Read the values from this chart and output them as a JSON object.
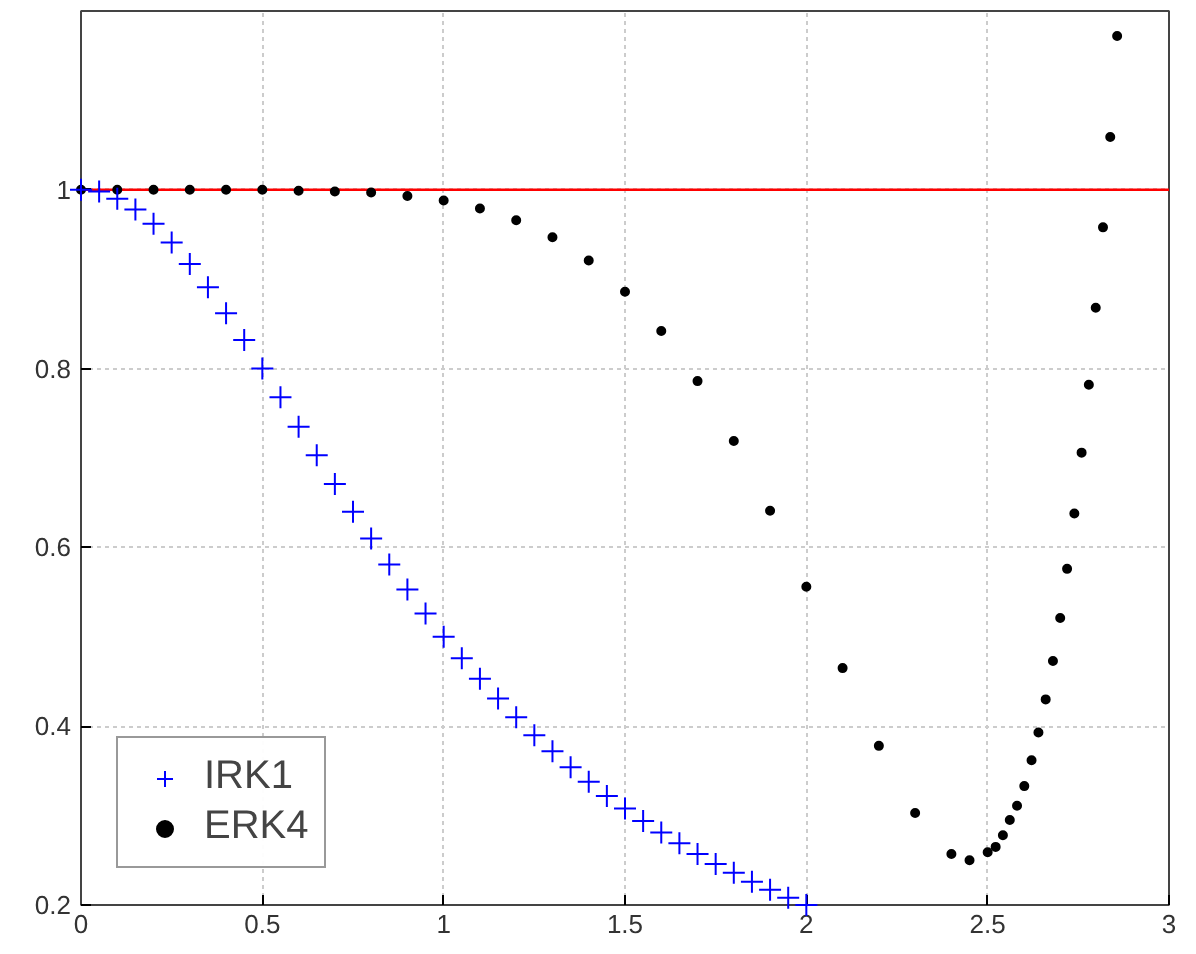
{
  "chart_data": {
    "type": "scatter",
    "xlim": [
      0,
      3
    ],
    "ylim": [
      0.2,
      1.2
    ],
    "xticks": [
      0,
      0.5,
      1,
      1.5,
      2,
      2.5,
      3
    ],
    "yticks": [
      0.2,
      0.4,
      0.6,
      0.8,
      1
    ],
    "grid": true,
    "legend": "bottom left",
    "ref_lines": [
      {
        "axis": "y",
        "value": 1,
        "color": "#ff0000"
      }
    ],
    "series": [
      {
        "name": "IRK1",
        "color": "#0000ff",
        "marker": "cross",
        "x": [
          0,
          0.05,
          0.1,
          0.15,
          0.2,
          0.25,
          0.3,
          0.35,
          0.4,
          0.45,
          0.5,
          0.55,
          0.6,
          0.65,
          0.7,
          0.75,
          0.8,
          0.85,
          0.9,
          0.95,
          1,
          1.05,
          1.1,
          1.15,
          1.2,
          1.25,
          1.3,
          1.35,
          1.4,
          1.45,
          1.5,
          1.55,
          1.6,
          1.65,
          1.7,
          1.75,
          1.8,
          1.85,
          1.9,
          1.95,
          2
        ],
        "values": [
          1,
          0.998,
          0.99,
          0.978,
          0.962,
          0.941,
          0.917,
          0.891,
          0.862,
          0.832,
          0.8,
          0.768,
          0.735,
          0.703,
          0.671,
          0.64,
          0.61,
          0.581,
          0.553,
          0.526,
          0.5,
          0.476,
          0.453,
          0.431,
          0.41,
          0.39,
          0.372,
          0.354,
          0.338,
          0.322,
          0.308,
          0.294,
          0.281,
          0.269,
          0.257,
          0.246,
          0.236,
          0.226,
          0.217,
          0.208,
          0.2
        ]
      },
      {
        "name": "ERK4",
        "color": "#000000",
        "marker": "circle",
        "x": [
          0,
          0.1,
          0.2,
          0.3,
          0.4,
          0.5,
          0.6,
          0.7,
          0.8,
          0.9,
          1,
          1.1,
          1.2,
          1.3,
          1.4,
          1.5,
          1.6,
          1.7,
          1.8,
          1.9,
          2,
          2.1,
          2.2,
          2.3,
          2.4,
          2.45,
          2.5,
          2.522,
          2.542,
          2.561,
          2.581,
          2.601,
          2.621,
          2.64,
          2.66,
          2.68,
          2.7,
          2.719,
          2.739,
          2.759,
          2.779,
          2.798,
          2.818,
          2.838,
          2.857
        ],
        "values": [
          1,
          1,
          1,
          1,
          1,
          1,
          0.999,
          0.998,
          0.997,
          0.993,
          0.988,
          0.979,
          0.966,
          0.947,
          0.921,
          0.886,
          0.842,
          0.786,
          0.719,
          0.641,
          0.556,
          0.465,
          0.378,
          0.303,
          0.257,
          0.25,
          0.259,
          0.265,
          0.278,
          0.295,
          0.311,
          0.333,
          0.362,
          0.393,
          0.43,
          0.473,
          0.521,
          0.576,
          0.638,
          0.706,
          0.782,
          0.868,
          0.958,
          1.059,
          1.172
        ]
      }
    ]
  }
}
